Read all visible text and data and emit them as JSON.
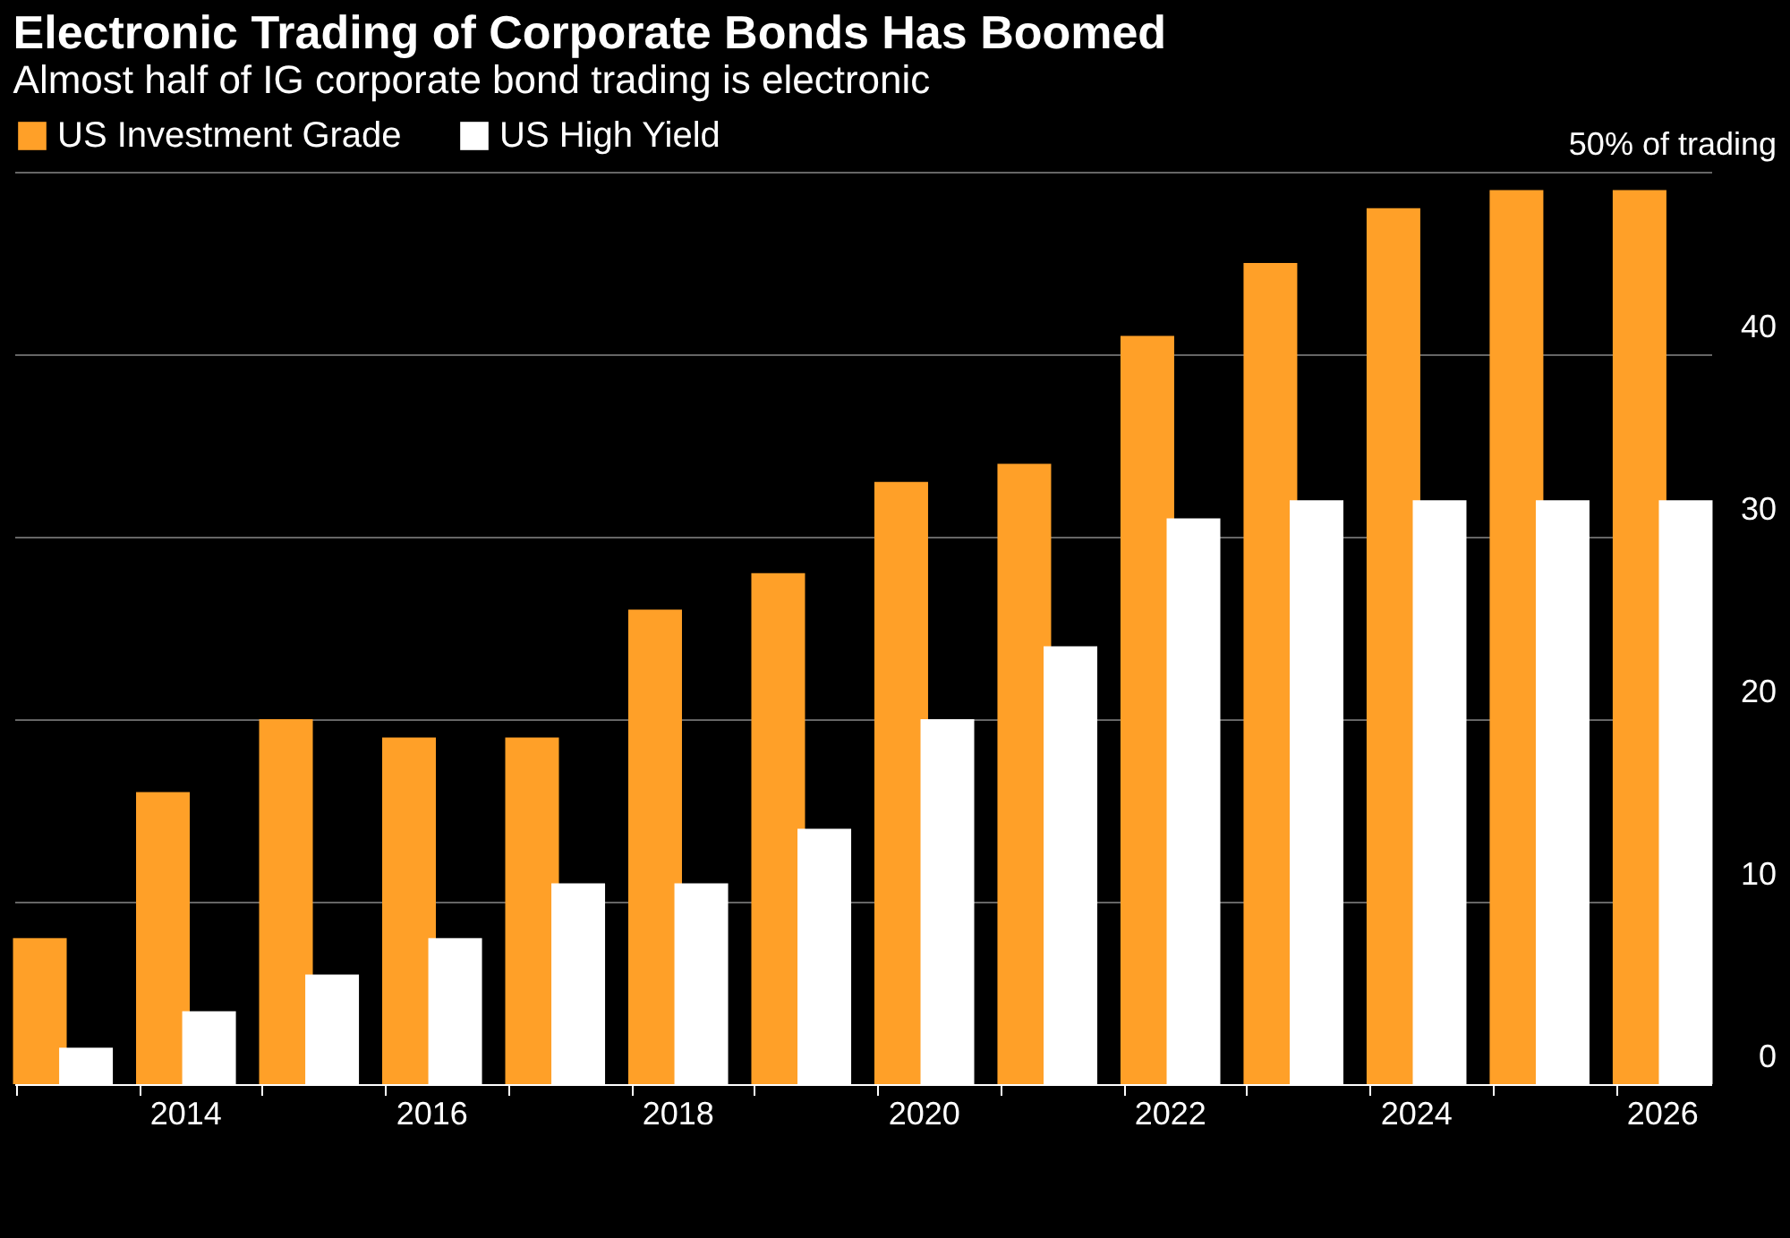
{
  "chart_data": {
    "type": "bar",
    "title": "Electronic Trading of Corporate Bonds Has Boomed",
    "subtitle": "Almost half of IG corporate bond trading is electronic",
    "categories": [
      null,
      "2014",
      null,
      "2016",
      null,
      "2018",
      null,
      "2020",
      null,
      "2022",
      null,
      "2024",
      null,
      "2026"
    ],
    "series": [
      {
        "name": "US Investment Grade",
        "color": "#ffa028",
        "values": [
          8,
          16,
          20,
          19,
          19,
          26,
          28,
          33,
          34,
          41,
          45,
          48,
          49,
          49
        ]
      },
      {
        "name": "US High Yield",
        "color": "#ffffff",
        "values": [
          2,
          4,
          6,
          8,
          11,
          11,
          14,
          20,
          24,
          31,
          32,
          32,
          32,
          32
        ]
      }
    ],
    "ylim": [
      0,
      50
    ],
    "yticks": [
      0,
      10,
      20,
      30,
      40,
      {
        "value": 50,
        "label": "50% of trading"
      }
    ],
    "grid": "y",
    "legend": "top left"
  }
}
